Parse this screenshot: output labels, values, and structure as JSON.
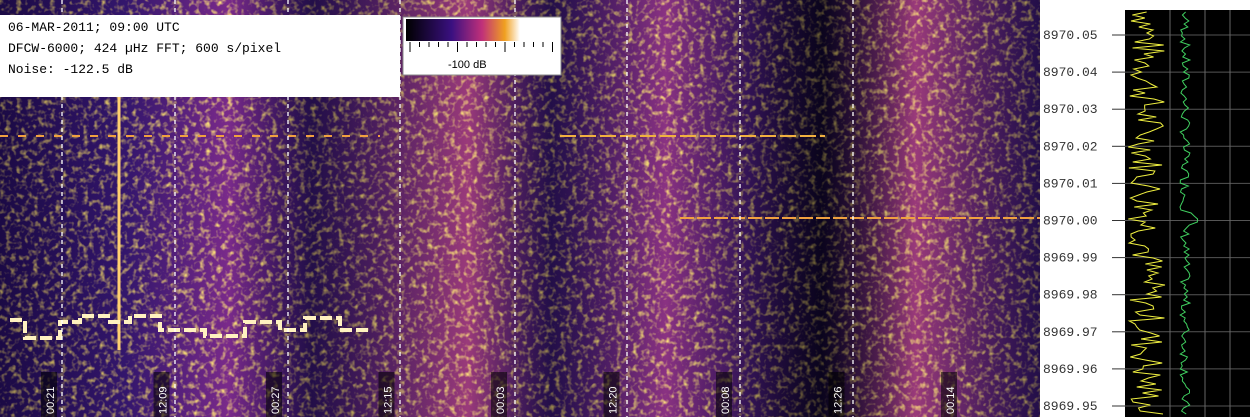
{
  "header": {
    "lines": [
      "06-MAR-2011; 09:00 UTC",
      "DFCW-6000; 424 µHz FFT; 600 s/pixel",
      "Noise: -122.5 dB"
    ]
  },
  "colorbar": {
    "label": "-100 dB"
  },
  "frequency_axis": {
    "labels": [
      "8970.05",
      "8970.04",
      "8970.03",
      "8970.02",
      "8970.01",
      "8970.00",
      "8969.99",
      "8969.98",
      "8969.97",
      "8969.96",
      "8969.95"
    ]
  },
  "time_labels": [
    "00:21",
    "12:09",
    "00:27",
    "12:15",
    "00:03",
    "12:20",
    "00:08",
    "12:26",
    "00:14"
  ]
}
